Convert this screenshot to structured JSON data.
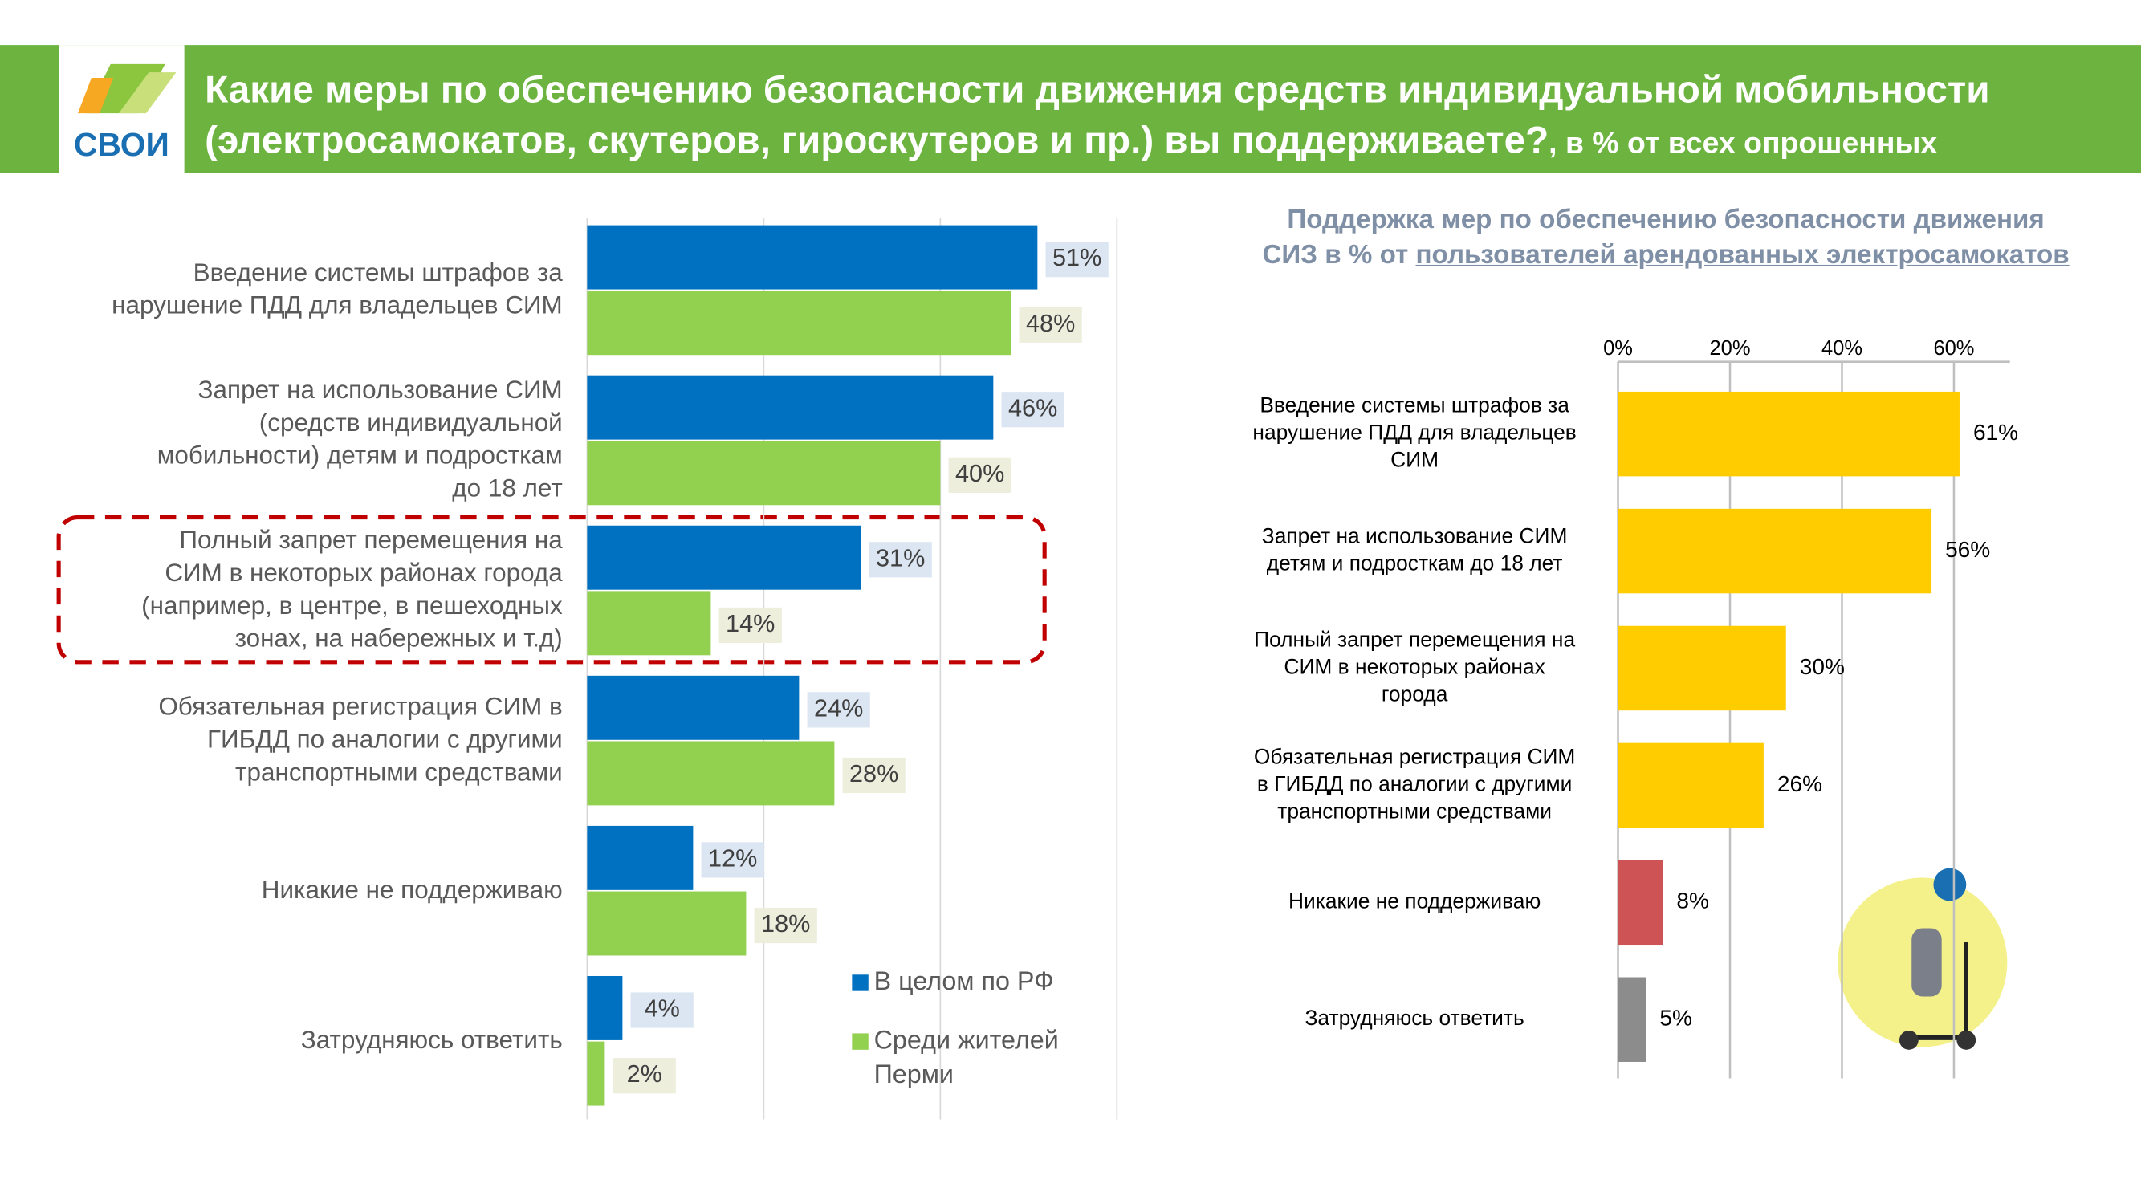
{
  "header": {
    "logo_text": "СВОИ",
    "title_lines": [
      "Какие меры по обеспечению безопасности движения средств индивидуальной мобильности",
      "(электросамокатов, скутеров, гироскутеров и пр.) вы поддерживаете?"
    ],
    "title_suffix": ", в % от всех опрошенных"
  },
  "chart_data": [
    {
      "type": "hbar",
      "categories": [
        "Введение системы штрафов за\nнарушение ПДД для владельцев СИМ",
        "Запрет на использование СИМ\n(средств индивидуальной\nмобильности) детям и подросткам\nдо 18 лет",
        "Полный запрет перемещения на\nСИМ в некоторых районах города\n(например, в центре, в пешеходных\nзонах, на набережных и т.д)",
        "Обязательная регистрация СИМ в\nГИБДД по аналогии с другими\nтранспортными средствами",
        "Никакие не поддерживаю",
        "Затрудняюсь ответить"
      ],
      "series": [
        {
          "name": "В целом по РФ",
          "color": "#0070c0",
          "values": [
            51,
            46,
            31,
            24,
            12,
            4
          ],
          "value_labels": [
            "51%",
            "46%",
            "31%",
            "24%",
            "12%",
            "4%"
          ]
        },
        {
          "name": "Среди жителей\nПерми",
          "color": "#92d050",
          "values": [
            48,
            40,
            14,
            28,
            18,
            2
          ],
          "value_labels": [
            "48%",
            "40%",
            "14%",
            "28%",
            "18%",
            "2%"
          ]
        }
      ],
      "xlim": [
        0,
        60
      ],
      "xticks": [
        0,
        20,
        40,
        60
      ],
      "grid": true
    },
    {
      "type": "hbar_single",
      "title": "Поддержка мер по обеспечению безопасности движения СИЗ в % от ",
      "title_underlined": "пользователей арендованных электросамокатов",
      "categories": [
        "Введение системы штрафов за\nнарушение ПДД для владельцев\nСИМ",
        "Запрет на использование СИМ\nдетям и подросткам до 18 лет",
        "Полный запрет перемещения на\nСИМ в некоторых районах\nгорода",
        "Обязательная регистрация СИМ\nв ГИБДД по аналогии с другими\nтранспортными средствами",
        "Никакие не поддерживаю",
        "Затрудняюсь ответить"
      ],
      "values": [
        61,
        56,
        30,
        26,
        8,
        5
      ],
      "value_labels": [
        "61%",
        "56%",
        "30%",
        "26%",
        "8%",
        "5%"
      ],
      "colors": [
        "#ffcc00",
        "#ffcc00",
        "#ffcc00",
        "#ffcc00",
        "#cd5355",
        "#8c8c8c"
      ],
      "xlim": [
        0,
        70
      ],
      "xticks": [
        {
          "value": 0,
          "label": "0%"
        },
        {
          "value": 20,
          "label": "20%"
        },
        {
          "value": 40,
          "label": "40%"
        },
        {
          "value": 60,
          "label": "60%"
        }
      ],
      "grid": true
    }
  ]
}
